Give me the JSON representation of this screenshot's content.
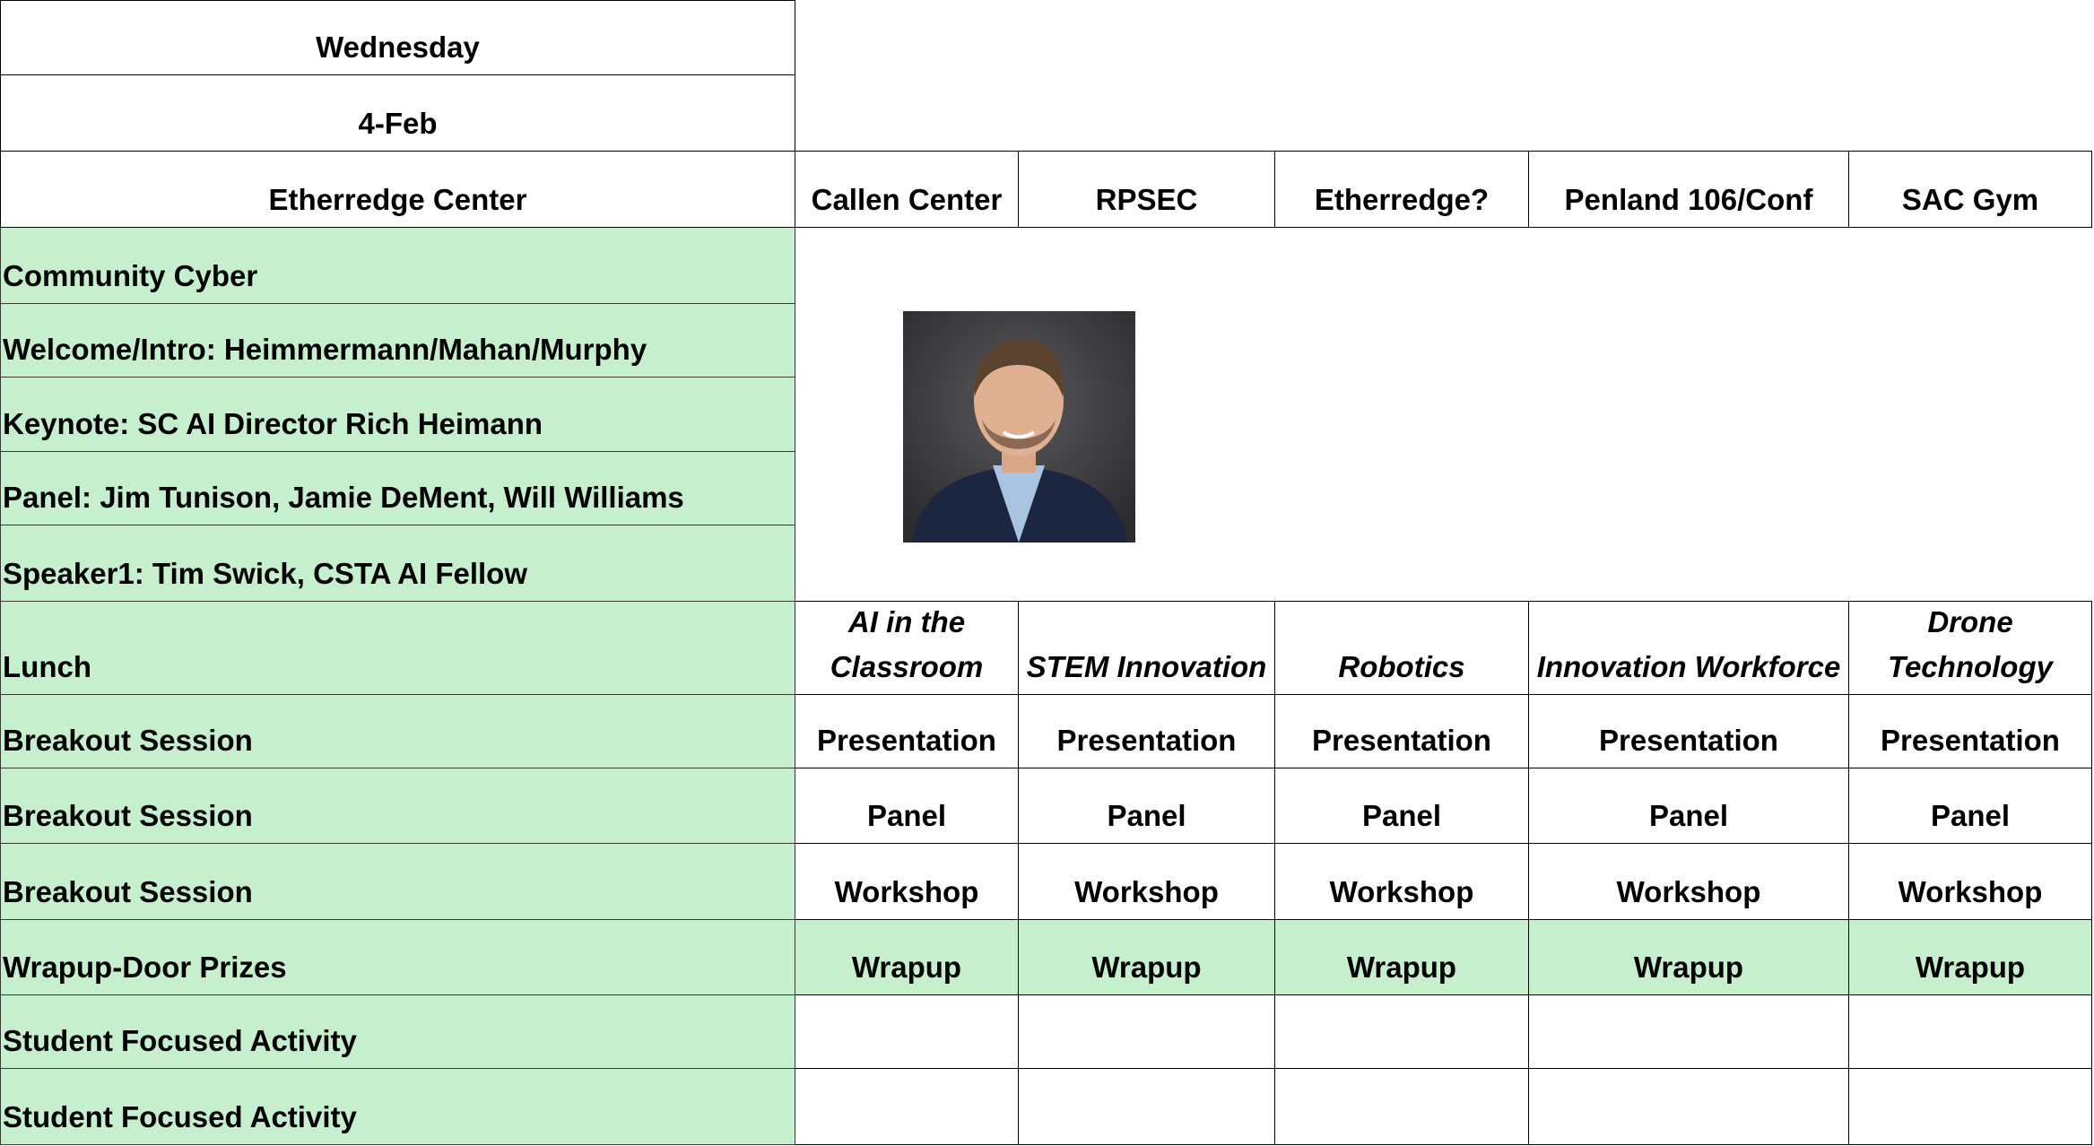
{
  "header": {
    "day": "Wednesday",
    "date": "4-Feb"
  },
  "rooms": [
    "Etherredge Center",
    "Callen Center",
    "RPSEC",
    "Etherredge?",
    "Penland 106/Conf",
    "SAC Gym"
  ],
  "agenda": [
    "Community Cyber",
    "Welcome/Intro: Heimmermann/Mahan/Murphy",
    "Keynote: SC AI Director Rich Heimann",
    "Panel: Jim Tunison, Jamie DeMent, Will Williams",
    "Speaker1: Tim Swick, CSTA AI Fellow",
    "Lunch",
    "Breakout Session",
    "Breakout Session",
    "Breakout Session",
    "Wrapup-Door Prizes",
    "Student Focused Activity",
    "Student Focused Activity"
  ],
  "tracks": [
    "AI in the Classroom",
    "STEM Innovation",
    "Robotics",
    "Innovation Workforce",
    "Drone Technology"
  ],
  "sessions": [
    [
      "Presentation",
      "Presentation",
      "Presentation",
      "Presentation",
      "Presentation"
    ],
    [
      "Panel",
      "Panel",
      "Panel",
      "Panel",
      "Panel"
    ],
    [
      "Workshop",
      "Workshop",
      "Workshop",
      "Workshop",
      "Workshop"
    ],
    [
      "Wrapup",
      "Wrapup",
      "Wrapup",
      "Wrapup",
      "Wrapup"
    ]
  ]
}
